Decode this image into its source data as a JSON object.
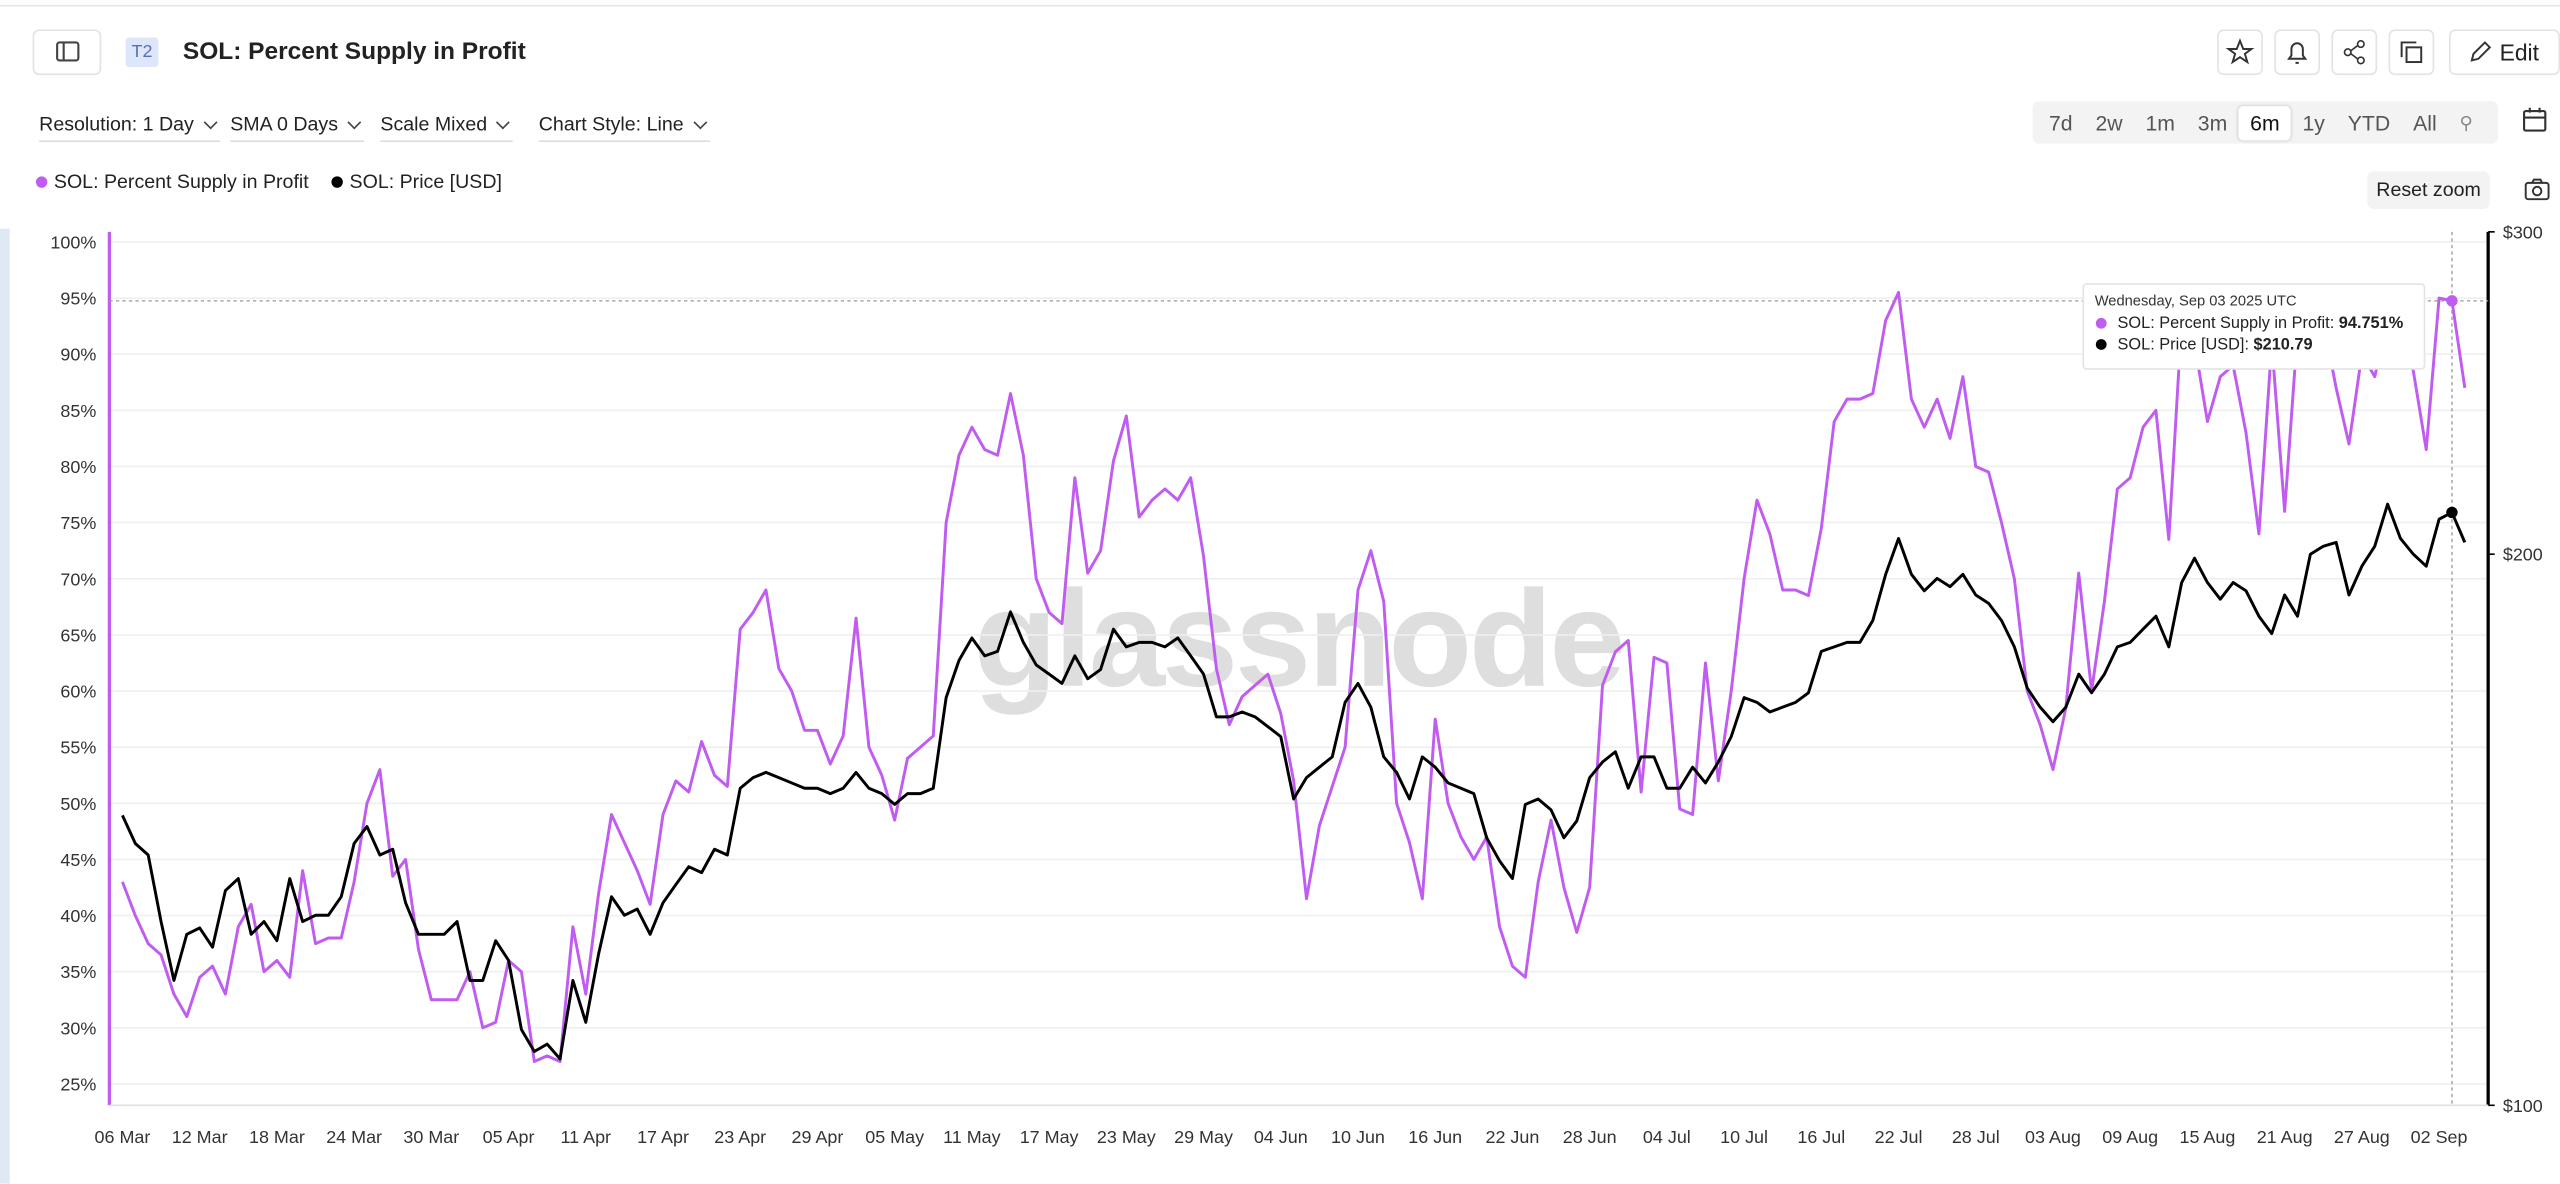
{
  "header": {
    "badge": "T2",
    "title": "SOL: Percent Supply in Profit",
    "edit": "Edit"
  },
  "toolbar": {
    "resolution": "Resolution: 1 Day",
    "sma": "SMA 0 Days",
    "scale": "Scale Mixed",
    "style": "Chart Style: Line"
  },
  "ranges": [
    "7d",
    "2w",
    "1m",
    "3m",
    "6m",
    "1y",
    "YTD",
    "All"
  ],
  "active_range": "6m",
  "reset_zoom": "Reset zoom",
  "chart_data": {
    "type": "line",
    "watermark": "glassnode",
    "categories": [
      "06 Mar",
      null,
      null,
      null,
      null,
      null,
      "12 Mar",
      null,
      null,
      null,
      null,
      null,
      "18 Mar",
      null,
      null,
      null,
      null,
      null,
      "24 Mar",
      null,
      null,
      null,
      null,
      null,
      "30 Mar",
      null,
      null,
      null,
      null,
      null,
      "05 Apr",
      null,
      null,
      null,
      null,
      null,
      "11 Apr",
      null,
      null,
      null,
      null,
      null,
      "17 Apr",
      null,
      null,
      null,
      null,
      null,
      "23 Apr",
      null,
      null,
      null,
      null,
      null,
      "29 Apr",
      null,
      null,
      null,
      null,
      null,
      "05 May",
      null,
      null,
      null,
      null,
      null,
      "11 May",
      null,
      null,
      null,
      null,
      null,
      "17 May",
      null,
      null,
      null,
      null,
      null,
      "23 May",
      null,
      null,
      null,
      null,
      null,
      "29 May",
      null,
      null,
      null,
      null,
      null,
      "04 Jun",
      null,
      null,
      null,
      null,
      null,
      "10 Jun",
      null,
      null,
      null,
      null,
      null,
      "16 Jun",
      null,
      null,
      null,
      null,
      null,
      "22 Jun",
      null,
      null,
      null,
      null,
      null,
      "28 Jun",
      null,
      null,
      null,
      null,
      null,
      "04 Jul",
      null,
      null,
      null,
      null,
      null,
      "10 Jul",
      null,
      null,
      null,
      null,
      null,
      "16 Jul",
      null,
      null,
      null,
      null,
      null,
      "22 Jul",
      null,
      null,
      null,
      null,
      null,
      "28 Jul",
      null,
      null,
      null,
      null,
      null,
      "03 Aug",
      null,
      null,
      null,
      null,
      null,
      "09 Aug",
      null,
      null,
      null,
      null,
      null,
      "15 Aug",
      null,
      null,
      null,
      null,
      null,
      "21 Aug",
      null,
      null,
      null,
      null,
      null,
      "27 Aug",
      null,
      null,
      null,
      null,
      null,
      "02 Sep",
      null,
      null
    ],
    "series": [
      {
        "name": "SOL: Percent Supply in Profit",
        "color": "#c05cf0",
        "axis": "y",
        "values": [
          43,
          40,
          37.5,
          36.5,
          33,
          31,
          34.5,
          35.5,
          33,
          39,
          41,
          35,
          36,
          34.5,
          44,
          37.5,
          38,
          38,
          43,
          50,
          53,
          43.5,
          45,
          37,
          32.5,
          32.5,
          32.5,
          35,
          30,
          30.5,
          36,
          35,
          27,
          27.5,
          27,
          39,
          33,
          42,
          49,
          46.5,
          44,
          41,
          49,
          52,
          51,
          55.5,
          52.5,
          51.5,
          65.5,
          67,
          69,
          62,
          60,
          56.5,
          56.5,
          53.5,
          56,
          66.5,
          55,
          52.5,
          48.5,
          54,
          55,
          56,
          75,
          81,
          83.5,
          81.5,
          81,
          86.5,
          81,
          70,
          67,
          66,
          79,
          70.5,
          72.5,
          80.5,
          84.5,
          75.5,
          77,
          78,
          77,
          79,
          72,
          62,
          57,
          59.5,
          60.5,
          61.5,
          58,
          52,
          41.5,
          48,
          51.5,
          55,
          69,
          72.5,
          68,
          50,
          46.5,
          41.5,
          57.5,
          50,
          47,
          45,
          47,
          39,
          35.5,
          34.5,
          43,
          48.5,
          42.5,
          38.5,
          42.5,
          60.5,
          63.5,
          64.5,
          51,
          63,
          62.5,
          49.5,
          49,
          62.5,
          52,
          60,
          70,
          77,
          74,
          69,
          69,
          68.5,
          74.5,
          84,
          86,
          86,
          86.5,
          93,
          95.5,
          86,
          83.5,
          86,
          82.5,
          88,
          80,
          79.5,
          75,
          70,
          60,
          57,
          53,
          58.5,
          70.5,
          60,
          68,
          78,
          79,
          83.5,
          85,
          73.5,
          93,
          91,
          84,
          88,
          89,
          83,
          74,
          91,
          76,
          92,
          91,
          93,
          87,
          82,
          90,
          88,
          93,
          94,
          88.5,
          81.5,
          95,
          94.751,
          87
        ]
      },
      {
        "name": "SOL: Price [USD]",
        "color": "#000000",
        "axis": "y2",
        "values": [
          144,
          139,
          137,
          126,
          117,
          124,
          125,
          122,
          131,
          133,
          124,
          126,
          123,
          133,
          126,
          127,
          127,
          130,
          139,
          142,
          137,
          138,
          129,
          124,
          124,
          124,
          126,
          117,
          117,
          123,
          120,
          110,
          107,
          108,
          106,
          117,
          111,
          121,
          130,
          127,
          128,
          124,
          129,
          132,
          135,
          134,
          138,
          137,
          149,
          151,
          152,
          151,
          150,
          149,
          149,
          148,
          149,
          152,
          149,
          148,
          146,
          148,
          148,
          149,
          167,
          175,
          180,
          176,
          177,
          186,
          179,
          174,
          172,
          170,
          176,
          171,
          173,
          182,
          178,
          179,
          179,
          178,
          180,
          176,
          172,
          163,
          163,
          164,
          163,
          161,
          159,
          147,
          151,
          153,
          155,
          166,
          170,
          165,
          155,
          152,
          147,
          155,
          153,
          150,
          149,
          148,
          140,
          136,
          133,
          146,
          147,
          145,
          140,
          143,
          151,
          154,
          156,
          149,
          155,
          155,
          149,
          149,
          153,
          150,
          154,
          159,
          167,
          166,
          164,
          165,
          166,
          168,
          177,
          178,
          179,
          179,
          184,
          195,
          204,
          195,
          191,
          194,
          192,
          195,
          190,
          188,
          184,
          178,
          169,
          165,
          162,
          165,
          172,
          168,
          172,
          178,
          179,
          182,
          185,
          178,
          193,
          199,
          193,
          189,
          193,
          191,
          185,
          181,
          190,
          185,
          200,
          202,
          203,
          190,
          197,
          202,
          213,
          204,
          200,
          197,
          209,
          210.79,
          203
        ]
      }
    ],
    "ylim": [
      23.1,
      100.9
    ],
    "yticks": [
      {
        "value": 25,
        "label": "25%"
      },
      {
        "value": 30,
        "label": "30%"
      },
      {
        "value": 35,
        "label": "35%"
      },
      {
        "value": 40,
        "label": "40%"
      },
      {
        "value": 45,
        "label": "45%"
      },
      {
        "value": 50,
        "label": "50%"
      },
      {
        "value": 55,
        "label": "55%"
      },
      {
        "value": 60,
        "label": "60%"
      },
      {
        "value": 65,
        "label": "65%"
      },
      {
        "value": 70,
        "label": "70%"
      },
      {
        "value": 75,
        "label": "75%"
      },
      {
        "value": 80,
        "label": "80%"
      },
      {
        "value": 85,
        "label": "85%"
      },
      {
        "value": 90,
        "label": "90%"
      },
      {
        "value": 95,
        "label": "95%"
      },
      {
        "value": 100,
        "label": "100%"
      }
    ],
    "y2lim": [
      100,
      300
    ],
    "y2scale": "log",
    "y2ticks": [
      {
        "value": 100,
        "label": "$100"
      },
      {
        "value": 200,
        "label": "$200"
      },
      {
        "value": 300,
        "label": "$300"
      }
    ],
    "grid": true,
    "tooltip": {
      "title": "Wednesday, Sep 03 2025 UTC",
      "values": [
        "94.751%",
        "$210.79"
      ]
    }
  }
}
